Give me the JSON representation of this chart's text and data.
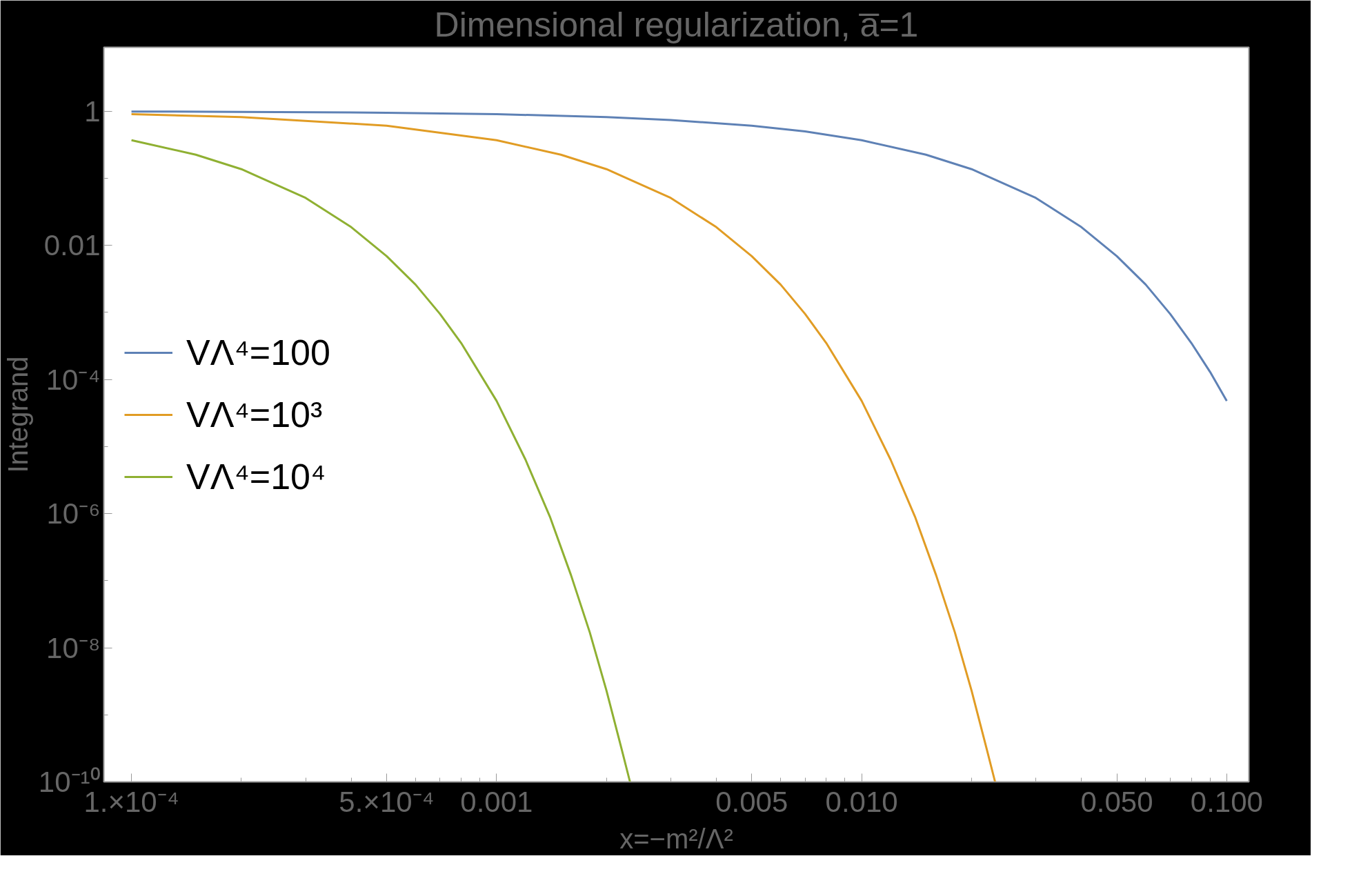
{
  "chart_data": {
    "type": "line",
    "title": "Dimensional regularization, a̅=1",
    "xlabel": "x=−m²/Λ²",
    "ylabel": "Integrand",
    "log": "xy",
    "grid": false,
    "legend": "center left",
    "line_style": "solid",
    "marker": "none",
    "xlim": [
      8.4e-05,
      0.115
    ],
    "ylim": [
      1e-10,
      9
    ],
    "xticks": [
      {
        "value": 0.0001,
        "label": "1.×10⁻⁴"
      },
      {
        "value": 0.0002,
        "label": null
      },
      {
        "value": 0.0003,
        "label": null
      },
      {
        "value": 0.0004,
        "label": null
      },
      {
        "value": 0.0005,
        "label": "5.×10⁻⁴"
      },
      {
        "value": 0.0006,
        "label": null
      },
      {
        "value": 0.0007,
        "label": null
      },
      {
        "value": 0.0008,
        "label": null
      },
      {
        "value": 0.0009,
        "label": null
      },
      {
        "value": 0.001,
        "label": "0.001"
      },
      {
        "value": 0.002,
        "label": null
      },
      {
        "value": 0.003,
        "label": null
      },
      {
        "value": 0.004,
        "label": null
      },
      {
        "value": 0.005,
        "label": "0.005"
      },
      {
        "value": 0.006,
        "label": null
      },
      {
        "value": 0.007,
        "label": null
      },
      {
        "value": 0.008,
        "label": null
      },
      {
        "value": 0.009,
        "label": null
      },
      {
        "value": 0.01,
        "label": "0.010"
      },
      {
        "value": 0.02,
        "label": null
      },
      {
        "value": 0.03,
        "label": null
      },
      {
        "value": 0.04,
        "label": null
      },
      {
        "value": 0.05,
        "label": "0.050"
      },
      {
        "value": 0.06,
        "label": null
      },
      {
        "value": 0.07,
        "label": null
      },
      {
        "value": 0.08,
        "label": null
      },
      {
        "value": 0.09,
        "label": null
      },
      {
        "value": 0.1,
        "label": "0.100"
      }
    ],
    "yticks": [
      1,
      {
        "value": 0.1,
        "label": null
      },
      0.01,
      {
        "value": 0.001,
        "label": null
      },
      {
        "value": 0.0001,
        "label": "10⁻⁴"
      },
      {
        "value": 1e-05,
        "label": null
      },
      {
        "value": 1e-06,
        "label": "10⁻⁶"
      },
      {
        "value": 1e-07,
        "label": null
      },
      {
        "value": 1e-08,
        "label": "10⁻⁸"
      },
      {
        "value": 1e-09,
        "label": null
      },
      {
        "value": 1e-10,
        "label": "10⁻¹⁰"
      }
    ],
    "series": [
      {
        "name": "VΛ⁴=100",
        "color": "#5e81b5",
        "x": [
          0.0001,
          0.0002,
          0.0005,
          0.001,
          0.002,
          0.003,
          0.005,
          0.007,
          0.01,
          0.015,
          0.02,
          0.03,
          0.04,
          0.05,
          0.06,
          0.07,
          0.08,
          0.09,
          0.1
        ],
        "values": [
          0.99,
          0.98,
          0.95,
          0.905,
          0.82,
          0.74,
          0.61,
          0.5,
          0.37,
          0.225,
          0.137,
          0.051,
          0.0187,
          0.0069,
          0.0026,
          0.00095,
          0.00035,
          0.00013,
          4.8e-05
        ]
      },
      {
        "name": "VΛ⁴=10³",
        "color": "#e19c24",
        "x": [
          0.0001,
          0.0002,
          0.0005,
          0.001,
          0.0015,
          0.002,
          0.003,
          0.004,
          0.005,
          0.006,
          0.007,
          0.008,
          0.01,
          0.012,
          0.014,
          0.016,
          0.018,
          0.02,
          0.022,
          0.0232
        ],
        "values": [
          0.905,
          0.82,
          0.61,
          0.37,
          0.225,
          0.137,
          0.051,
          0.0187,
          0.0069,
          0.0026,
          0.00095,
          0.00035,
          4.8e-05,
          6.4e-06,
          9e-07,
          1.2e-07,
          1.7e-08,
          2.3e-09,
          3.1e-10,
          1e-10
        ]
      },
      {
        "name": "VΛ⁴=10⁴",
        "color": "#8fb032",
        "x": [
          0.0001,
          0.00015,
          0.0002,
          0.0003,
          0.0004,
          0.0005,
          0.0006,
          0.0007,
          0.0008,
          0.001,
          0.0012,
          0.0014,
          0.0016,
          0.0018,
          0.002,
          0.0022,
          0.00232
        ],
        "values": [
          0.37,
          0.225,
          0.137,
          0.051,
          0.0187,
          0.0069,
          0.0026,
          0.00095,
          0.00035,
          4.8e-05,
          6.4e-06,
          9e-07,
          1.2e-07,
          1.7e-08,
          2.3e-09,
          3.1e-10,
          1e-10
        ]
      }
    ]
  }
}
